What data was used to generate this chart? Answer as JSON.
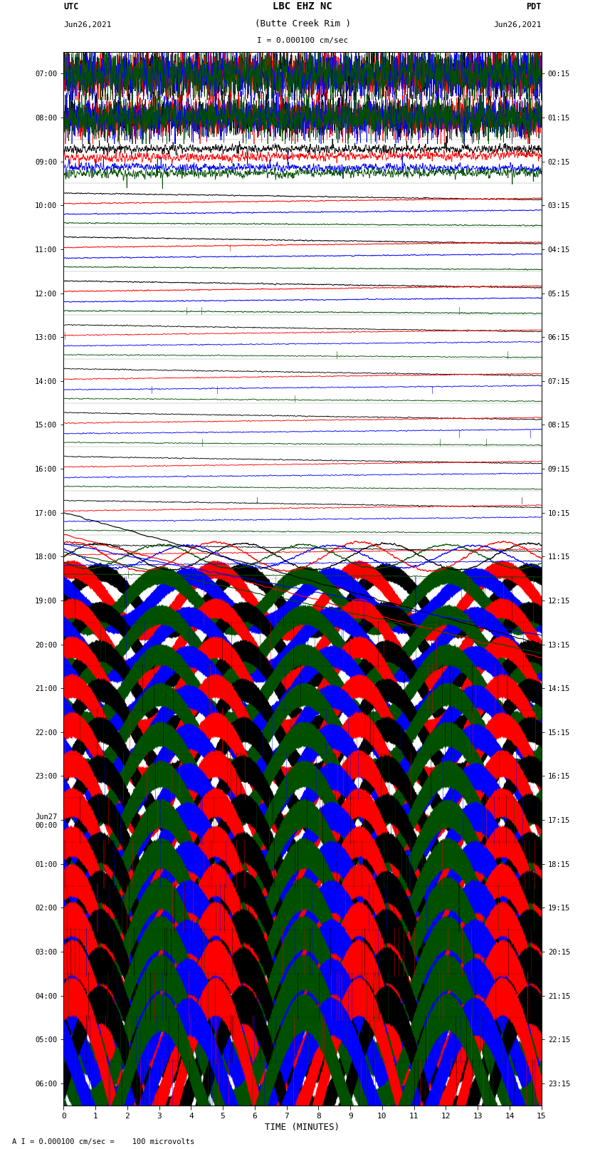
{
  "title_line1": "LBC EHZ NC",
  "title_line2": "(Butte Creek Rim )",
  "title_line3": "I = 0.000100 cm/sec",
  "label_utc": "UTC",
  "label_utc_date": "Jun26,2021",
  "label_pdt": "PDT",
  "label_pdt_date": "Jun26,2021",
  "xlabel": "TIME (MINUTES)",
  "footer": "A I = 0.000100 cm/sec =    100 microvolts",
  "left_times": [
    "07:00",
    "08:00",
    "09:00",
    "10:00",
    "11:00",
    "12:00",
    "13:00",
    "14:00",
    "15:00",
    "16:00",
    "17:00",
    "18:00",
    "19:00",
    "20:00",
    "21:00",
    "22:00",
    "23:00",
    "Jun27\n00:00",
    "01:00",
    "02:00",
    "03:00",
    "04:00",
    "05:00",
    "06:00"
  ],
  "right_times": [
    "00:15",
    "01:15",
    "02:15",
    "03:15",
    "04:15",
    "05:15",
    "06:15",
    "07:15",
    "08:15",
    "09:15",
    "10:15",
    "11:15",
    "12:15",
    "13:15",
    "14:15",
    "15:15",
    "16:15",
    "17:15",
    "18:15",
    "19:15",
    "20:15",
    "21:15",
    "22:15",
    "23:15"
  ],
  "n_rows": 24,
  "xmin": 0,
  "xmax": 15,
  "bg_color": "#ffffff",
  "col_black": "#000000",
  "col_red": "#ff0000",
  "col_blue": "#0000ff",
  "col_green": "#005000"
}
